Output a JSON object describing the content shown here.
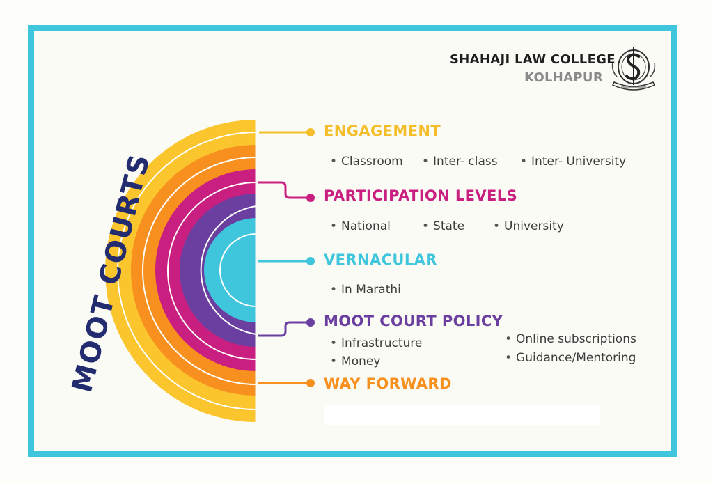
{
  "header": {
    "college_name": "SHAHAJI LAW COLLEGE",
    "college_city": "KOLHAPUR",
    "logo_icon": "college-emblem"
  },
  "diagram": {
    "title": "MOOT COURTS",
    "sections": [
      {
        "heading": "ENGAGEMENT",
        "color": "#f4be2a",
        "bullets": [
          "Classroom",
          "Inter- class",
          "Inter- University"
        ]
      },
      {
        "heading": "PARTICIPATION LEVELS",
        "color": "#c91f80",
        "bullets": [
          "National",
          "State",
          "University"
        ]
      },
      {
        "heading": "VERNACULAR",
        "color": "#3fc6dc",
        "bullets": [
          "In Marathi"
        ]
      },
      {
        "heading": "MOOT COURT POLICY",
        "color": "#6b3fa0",
        "bullets": [
          "Infrastructure",
          "Money",
          "Online subscriptions",
          "Guidance/Mentoring"
        ]
      },
      {
        "heading": "WAY FORWARD",
        "color": "#f7901e",
        "bullets": []
      }
    ],
    "colors": {
      "frame": "#3fc6dc",
      "title": "#232c6e",
      "rings": [
        "#fbc52e",
        "#f7901e",
        "#c91f80",
        "#6b3fa0",
        "#3fc6dc"
      ]
    }
  }
}
